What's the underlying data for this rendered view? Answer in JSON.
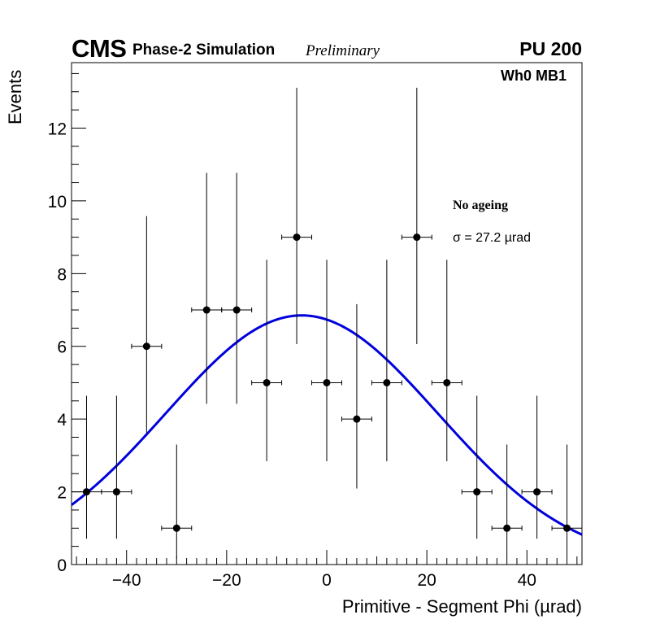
{
  "header": {
    "experiment": "CMS",
    "subtitle": "Phase-2 Simulation",
    "status": "Preliminary",
    "pileup": "PU 200",
    "station": "Wh0 MB1"
  },
  "annotations": {
    "scenario": "No ageing",
    "sigma_text": "σ = 27.2 µrad"
  },
  "colors": {
    "fit": "#0000dd",
    "points": "#000000",
    "frame": "#000000"
  },
  "chart_data": {
    "type": "scatter",
    "title": "",
    "xlabel": "Primitive - Segment Phi (µrad)",
    "ylabel": "Events",
    "xlim": [
      -51,
      51
    ],
    "ylim": [
      0,
      13.8
    ],
    "xticks": [
      -40,
      -20,
      0,
      20,
      40
    ],
    "xtick_labels": [
      "−40",
      "−20",
      "0",
      "20",
      "40"
    ],
    "yticks": [
      0,
      2,
      4,
      6,
      8,
      10,
      12
    ],
    "ytick_labels": [
      "0",
      "2",
      "4",
      "6",
      "8",
      "10",
      "12"
    ],
    "grid": false,
    "series": [
      {
        "name": "Simulation",
        "bin_width": 6,
        "x": [
          -48,
          -42,
          -36,
          -30,
          -24,
          -18,
          -12,
          -6,
          0,
          6,
          12,
          18,
          24,
          30,
          36,
          42,
          48
        ],
        "y": [
          2,
          2,
          6,
          1,
          7,
          7,
          5,
          9,
          5,
          4,
          5,
          9,
          5,
          2,
          1,
          2,
          1
        ],
        "y_err_low": [
          1.29,
          1.29,
          2.38,
          0.83,
          2.58,
          2.58,
          2.16,
          2.94,
          2.16,
          1.91,
          2.16,
          2.94,
          2.16,
          1.29,
          0.83,
          1.29,
          0.83
        ],
        "y_err_high": [
          2.64,
          2.64,
          3.58,
          2.3,
          3.77,
          3.77,
          3.38,
          4.11,
          3.38,
          3.16,
          3.38,
          4.11,
          3.38,
          2.64,
          2.3,
          2.64,
          2.3
        ]
      },
      {
        "name": "Gaussian fit",
        "type": "line",
        "amplitude": 6.85,
        "mean": -5.0,
        "sigma": 27.2
      }
    ]
  }
}
